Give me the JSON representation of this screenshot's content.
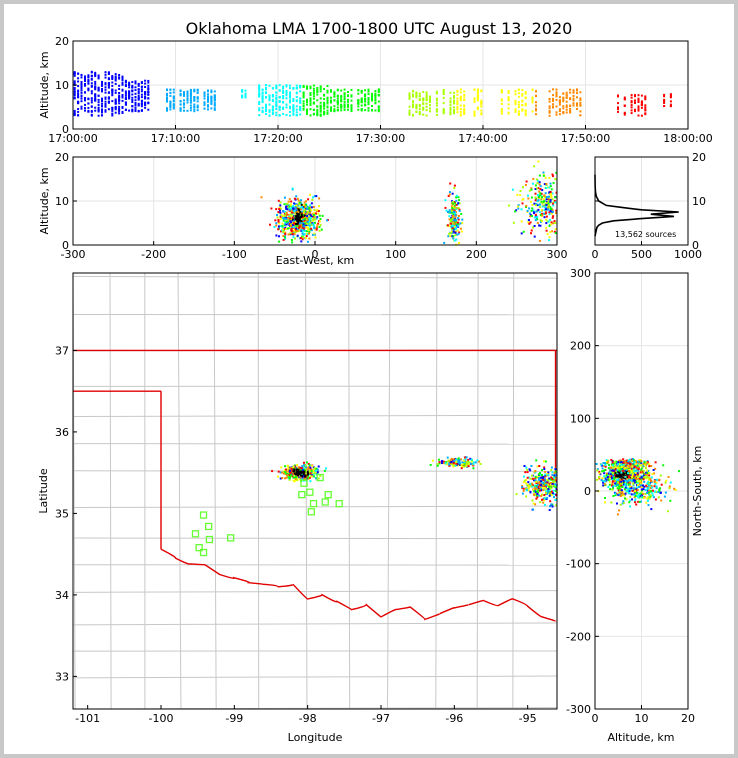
{
  "title": "Oklahoma LMA 1700-1800 UTC August 13, 2020",
  "colors": {
    "state_border": "#e00000",
    "county": "#c8c8c8",
    "station": "#66ff33",
    "frame_bg": "#c8c8c8",
    "grid": "#e6e6e6"
  },
  "colormap": [
    "#0000ff",
    "#00aaff",
    "#00ffff",
    "#00ff00",
    "#aaff00",
    "#ffff00",
    "#ff8800",
    "#ff0000"
  ],
  "source_count_label": "13,562 sources",
  "chart_data": [
    {
      "id": "time_height",
      "type": "scatter",
      "xlabel": "",
      "ylabel": "Altitude, km",
      "xlim_min": [
        1020,
        1080
      ],
      "ylim": [
        0,
        20
      ],
      "x_tick_labels": [
        "17:00:00",
        "17:10:00",
        "17:20:00",
        "17:30:00",
        "17:40:00",
        "17:50:00",
        "18:00:00"
      ],
      "y_ticks": [
        0,
        10,
        20
      ],
      "grid": true,
      "activity_bands_min": [
        {
          "t0": 1020.0,
          "t1": 1025.0,
          "zmin": 3,
          "zmax": 13,
          "density": 1.0
        },
        {
          "t0": 1025.0,
          "t1": 1027.5,
          "zmin": 4,
          "zmax": 11,
          "density": 0.8
        },
        {
          "t0": 1029.0,
          "t1": 1034.0,
          "zmin": 4,
          "zmax": 9,
          "density": 0.55
        },
        {
          "t0": 1036.0,
          "t1": 1037.0,
          "zmin": 7,
          "zmax": 9,
          "density": 0.2
        },
        {
          "t0": 1038.0,
          "t1": 1045.0,
          "zmin": 3,
          "zmax": 10,
          "density": 0.7
        },
        {
          "t0": 1045.0,
          "t1": 1050.0,
          "zmin": 4,
          "zmax": 9,
          "density": 0.55
        },
        {
          "t0": 1052.0,
          "t1": 1060.0,
          "zmin": 3,
          "zmax": 9,
          "density": 0.45
        },
        {
          "t0": 1061.0,
          "t1": 1070.0,
          "zmin": 3,
          "zmax": 9,
          "density": 0.3
        },
        {
          "t0": 1073.0,
          "t1": 1076.0,
          "zmin": 3,
          "zmax": 8,
          "density": 0.25
        },
        {
          "t0": 1077.5,
          "t1": 1078.5,
          "zmin": 5,
          "zmax": 8,
          "density": 0.2
        }
      ]
    },
    {
      "id": "east_west_height",
      "type": "scatter",
      "xlabel": "East-West, km",
      "ylabel": "Altitude, km",
      "xlim": [
        -300,
        300
      ],
      "ylim": [
        0,
        20
      ],
      "x_ticks": [
        -300,
        -200,
        -100,
        0,
        100,
        200,
        300
      ],
      "y_ticks": [
        0,
        10,
        20
      ],
      "grid": true,
      "clusters": [
        {
          "x": -20,
          "z": 6,
          "sx": 12,
          "sz": 2.2,
          "n": 700,
          "core": true
        },
        {
          "x": 172,
          "z": 6,
          "sx": 4,
          "sz": 3,
          "n": 180,
          "core": false
        },
        {
          "x": 285,
          "z": 9,
          "sx": 15,
          "sz": 3.5,
          "n": 300,
          "core": false
        }
      ]
    },
    {
      "id": "altitude_histogram",
      "type": "line",
      "xlabel": "",
      "ylabel": "",
      "xlim": [
        0,
        1000
      ],
      "ylim": [
        0,
        20
      ],
      "x_ticks": [
        0,
        500,
        1000
      ],
      "y_ticks": [
        0,
        10,
        20
      ],
      "x": [
        0,
        10,
        20,
        40,
        80,
        200,
        500,
        850,
        600,
        900,
        500,
        300,
        120,
        40,
        15,
        5,
        2,
        1,
        0
      ],
      "y": [
        2,
        3,
        4,
        4.5,
        5,
        5.5,
        6,
        6.5,
        7,
        7.5,
        8,
        8.5,
        9,
        10,
        11,
        12,
        13,
        14,
        16
      ]
    },
    {
      "id": "plan_view",
      "type": "map",
      "xlabel": "Longitude",
      "ylabel": "Latitude",
      "xlim": [
        -101.2,
        -94.6
      ],
      "ylim": [
        32.6,
        37.95
      ],
      "x_ticks": [
        -101,
        -100,
        -99,
        -98,
        -97,
        -96,
        -95
      ],
      "y_ticks": [
        33,
        34,
        35,
        36,
        37
      ],
      "stations": [
        [
          -99.42,
          34.98
        ],
        [
          -99.35,
          34.84
        ],
        [
          -99.53,
          34.75
        ],
        [
          -99.34,
          34.68
        ],
        [
          -99.48,
          34.58
        ],
        [
          -99.42,
          34.52
        ],
        [
          -99.05,
          34.7
        ],
        [
          -97.83,
          35.44
        ],
        [
          -97.72,
          35.23
        ],
        [
          -97.57,
          35.12
        ],
        [
          -98.08,
          35.23
        ],
        [
          -97.97,
          35.26
        ],
        [
          -97.92,
          35.12
        ],
        [
          -97.76,
          35.14
        ],
        [
          -98.05,
          35.37
        ],
        [
          -97.95,
          35.02
        ]
      ],
      "clusters": [
        {
          "lon": -98.1,
          "lat": 35.5,
          "slon": 0.12,
          "slat": 0.04,
          "n": 500,
          "core": true
        },
        {
          "lon": -95.95,
          "lat": 35.62,
          "slon": 0.12,
          "slat": 0.03,
          "n": 150,
          "core": false
        },
        {
          "lon": -94.75,
          "lat": 35.35,
          "slon": 0.15,
          "slat": 0.1,
          "n": 400,
          "core": false
        }
      ]
    },
    {
      "id": "north_south_height",
      "type": "scatter",
      "xlabel": "Altitude, km",
      "ylabel": "North-South, km",
      "xlim": [
        0,
        20
      ],
      "ylim": [
        -300,
        300
      ],
      "x_ticks": [
        0,
        10,
        20
      ],
      "y_ticks": [
        -300,
        -200,
        -100,
        0,
        100,
        200,
        300
      ],
      "grid": true,
      "clusters": [
        {
          "z": 6,
          "y": 22,
          "sz": 2.2,
          "sy": 6,
          "n": 550,
          "core": true
        },
        {
          "z": 7,
          "y": 38,
          "sz": 2.5,
          "sy": 3,
          "n": 200,
          "core": false
        },
        {
          "z": 9,
          "y": 5,
          "sz": 3.5,
          "sy": 12,
          "n": 350,
          "core": false
        }
      ]
    }
  ]
}
